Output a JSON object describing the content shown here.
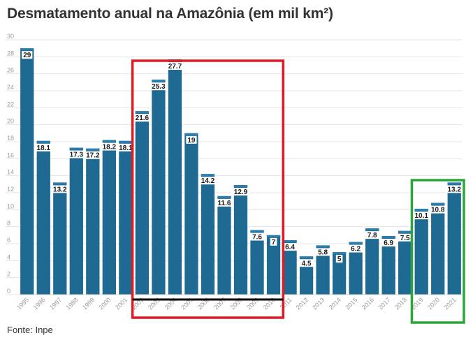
{
  "title": "Desmatamento anual na Amazônia (em mil km²)",
  "source": "Fonte: Inpe",
  "colors": {
    "bar": "#1e6a93",
    "bar_cap": "#2b7fae",
    "highlight_red": "#e01b24",
    "highlight_green": "#2aa63a",
    "baseline": "#000000"
  },
  "chart_data": {
    "type": "bar",
    "title": "Desmatamento anual na Amazônia (em mil km²)",
    "xlabel": "",
    "ylabel": "",
    "ylim": [
      0,
      30
    ],
    "yticks": [
      0,
      2,
      4,
      6,
      8,
      10,
      12,
      14,
      16,
      18,
      20,
      22,
      24,
      26,
      28,
      30
    ],
    "categories": [
      "1995",
      "1996",
      "1997",
      "1998",
      "1999",
      "2000",
      "2001",
      "2002",
      "2003",
      "2004",
      "2005",
      "2006",
      "2007",
      "2008",
      "2009",
      "2010",
      "2011",
      "2012",
      "2013",
      "2014",
      "2015",
      "2016",
      "2017",
      "2018",
      "2019",
      "2020",
      "2021"
    ],
    "values": [
      29,
      18.1,
      13.2,
      17.3,
      17.2,
      18.2,
      18.1,
      21.6,
      25.3,
      27.7,
      19,
      14.2,
      11.6,
      12.9,
      7.6,
      7,
      6.4,
      4.5,
      5.8,
      5,
      6.2,
      7.8,
      6.9,
      7.5,
      10.1,
      10.8,
      13.2
    ],
    "labels": [
      "29",
      "18.1",
      "13.2",
      "17.3",
      "17.2",
      "18.2",
      "18.1",
      "21.6",
      "25.3",
      "27.7",
      "19",
      "14.2",
      "11.6",
      "12.9",
      "7.6",
      "7",
      "6.4",
      "4.5",
      "5.8",
      "5",
      "6.2",
      "7.8",
      "6.9",
      "7.5",
      "10.1",
      "10.8",
      "13.2"
    ],
    "highlights": [
      {
        "color": "red",
        "from": "2002",
        "to": "2010"
      },
      {
        "color": "green",
        "from": "2019",
        "to": "2021"
      }
    ],
    "grid": true
  }
}
